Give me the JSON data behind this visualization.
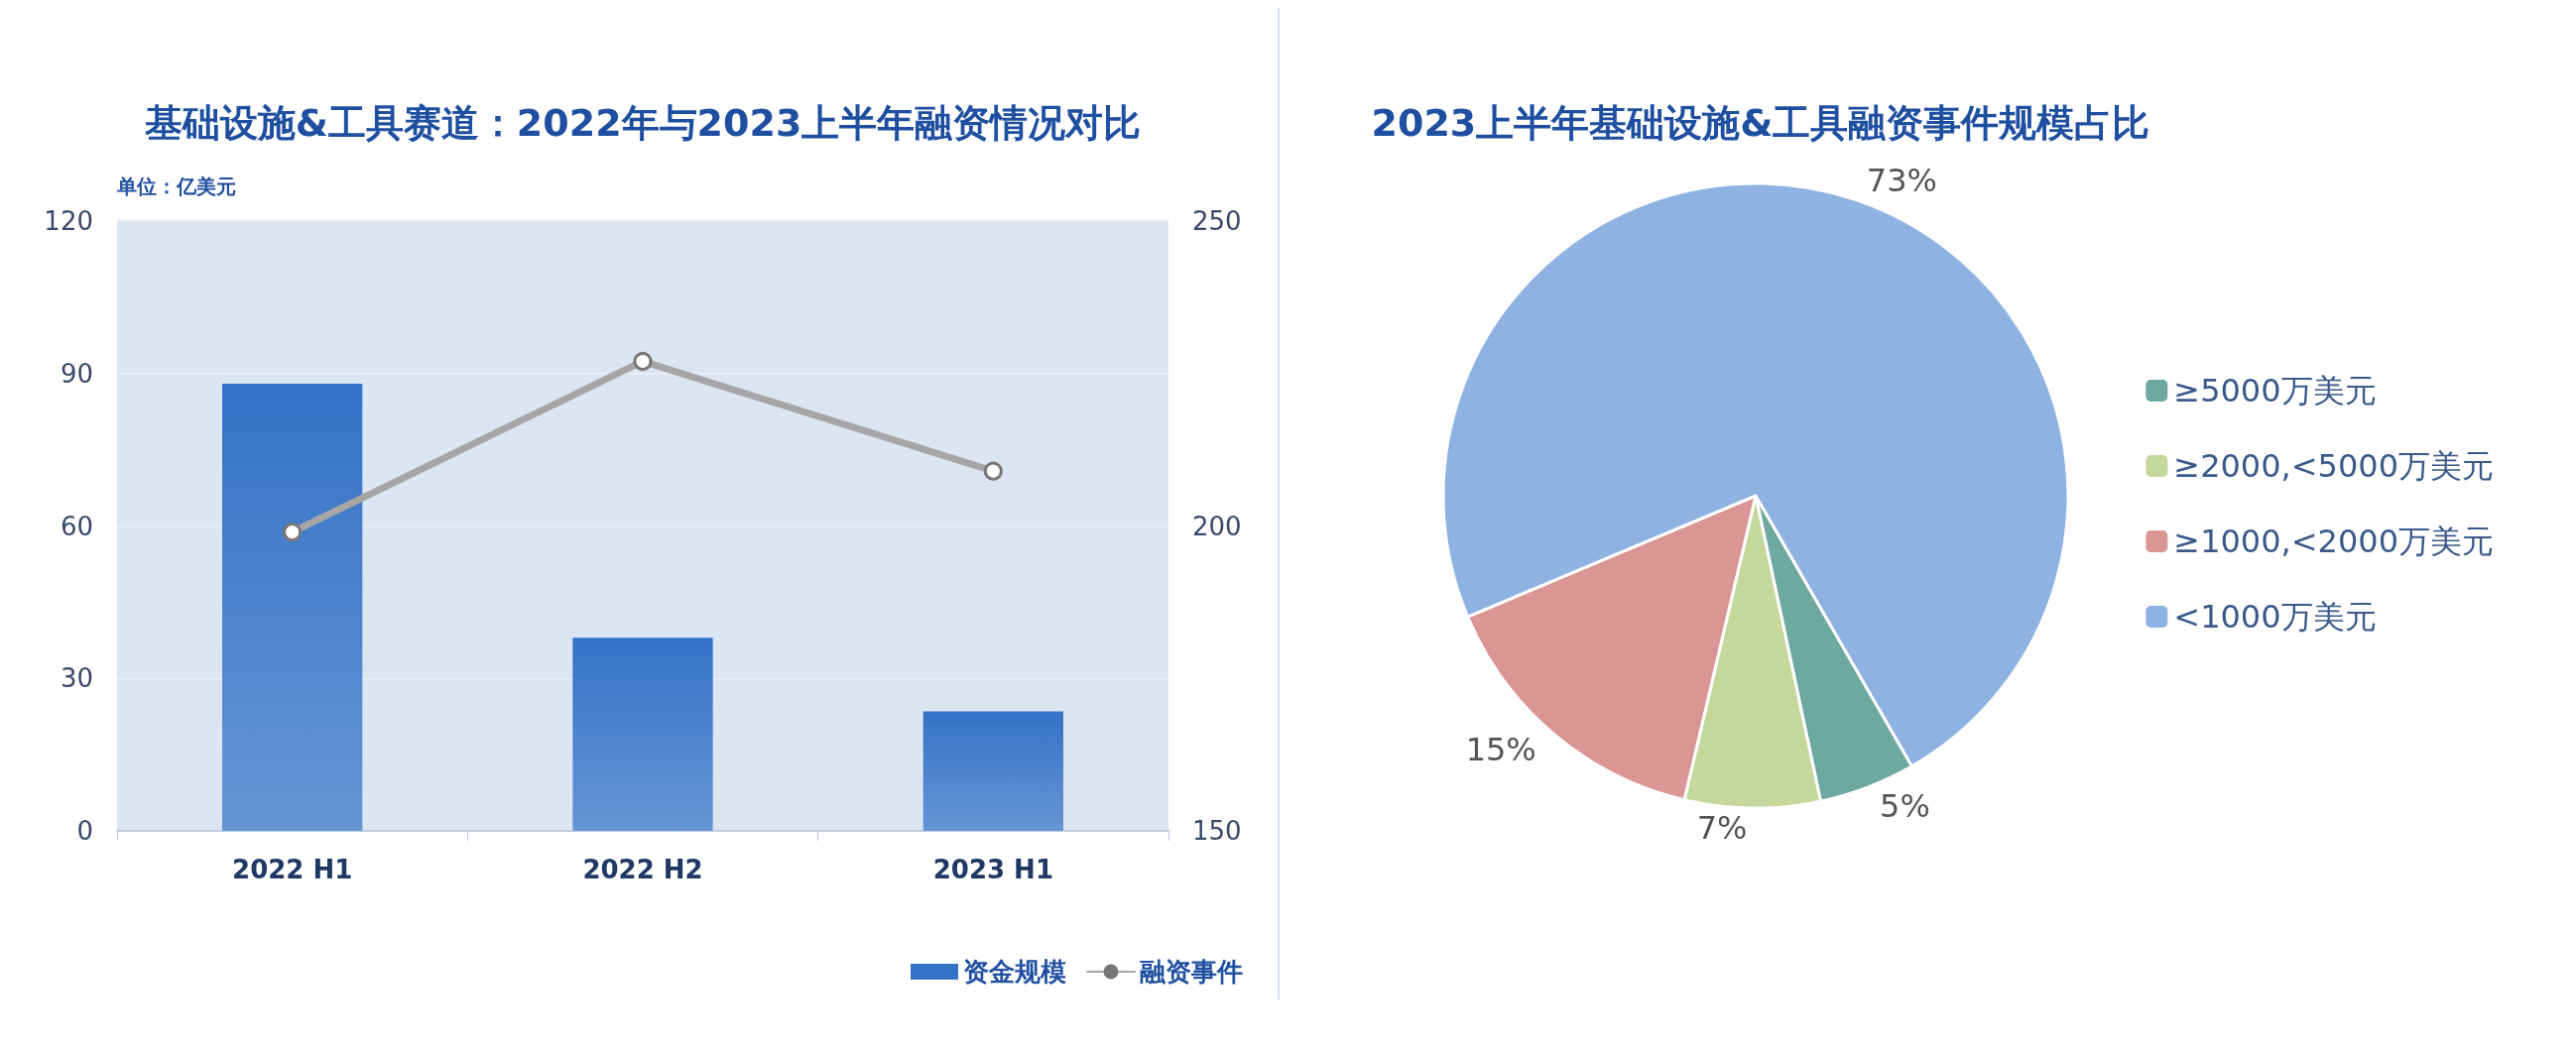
{
  "chart_data": [
    {
      "type": "bar",
      "title": "基础设施&工具赛道：2022年与2023上半年融资情况对比",
      "annotations": [
        "单位：亿美元"
      ],
      "categories": [
        "2022 H1",
        "2022 H2",
        "2023 H1"
      ],
      "series": [
        {
          "name": "资金规模",
          "type": "bar",
          "color": "#3572c6",
          "values": [
            88,
            38,
            23.5
          ]
        },
        {
          "name": "融资事件",
          "type": "line",
          "axis": "y2",
          "color": "#a6a6a6",
          "values": [
            199,
            227,
            209
          ]
        }
      ],
      "ylim": [
        0,
        120
      ],
      "yticks": [
        0,
        30,
        60,
        90,
        120
      ],
      "y2lim": [
        150,
        250
      ],
      "y2ticks": [
        150,
        200,
        250
      ],
      "grid": "y",
      "legend": "bottom right",
      "marker": "circle"
    },
    {
      "type": "pie",
      "title": "2023上半年基础设施&工具融资事件规模占比",
      "categories": [
        "≥5000万美元",
        "≥2000,<5000万美元",
        "≥1000,<2000万美元",
        "<1000万美元"
      ],
      "values": [
        5,
        7,
        15,
        73
      ],
      "value_labels": [
        "5%",
        "7%",
        "15%",
        "73%"
      ],
      "colors": [
        "#6da8a1",
        "#c5d89c",
        "#da9694",
        "#8eb3e2"
      ],
      "legend": "right"
    }
  ]
}
